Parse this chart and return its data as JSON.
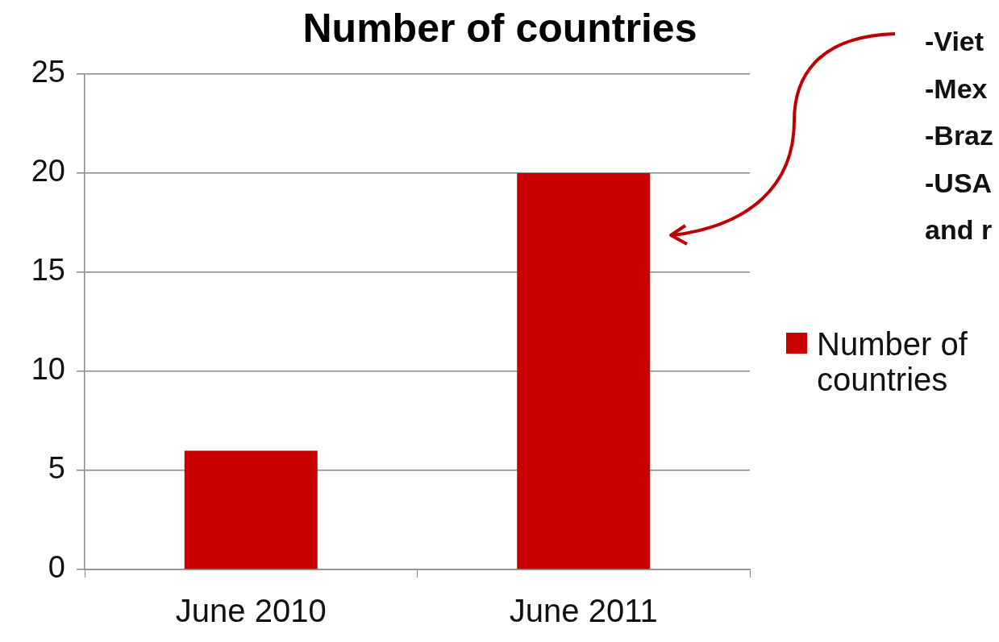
{
  "chart_data": {
    "type": "bar",
    "title": "Number of countries",
    "categories": [
      "June 2010",
      "June 2011"
    ],
    "series": [
      {
        "name": "Number of countries",
        "color": "#c80000",
        "values": [
          6,
          20
        ]
      }
    ],
    "ylim": [
      0,
      25
    ],
    "yticks": [
      0,
      5,
      10,
      15,
      20,
      25
    ],
    "grid": "y",
    "legend": "right",
    "annotations": [
      "-Viet",
      "-Mex",
      "-Braz",
      "-USA",
      "and r"
    ]
  }
}
